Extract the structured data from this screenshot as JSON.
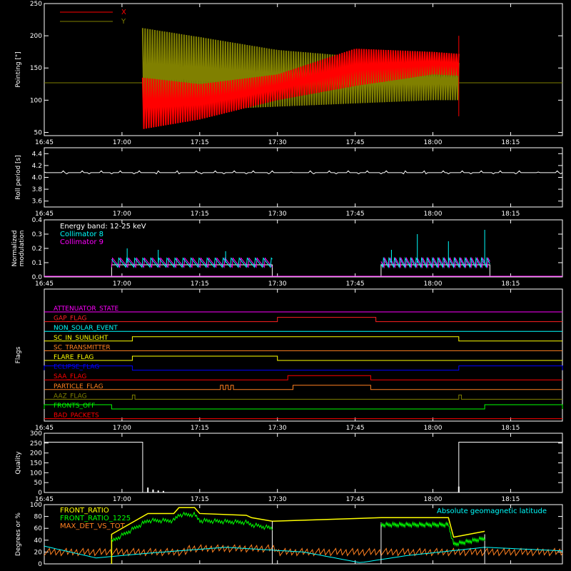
{
  "colors": {
    "background": "#000000",
    "axes": "#ffffff",
    "x": "#ff0000",
    "y": "#808000",
    "c8": "#00ffff",
    "c9": "#ff00ff",
    "front_ratio": "#ffff00",
    "front_ratio_1225": "#00ff00",
    "max_det": "#ff8020",
    "geomag": "#00ffff"
  },
  "time_ticks": [
    "16:45",
    "17:00",
    "17:15",
    "17:30",
    "17:45",
    "18:00",
    "18:15"
  ],
  "chart_data": [
    {
      "name": "pointing",
      "type": "line",
      "ylabel": "Pointing [\"]",
      "ylim": [
        45,
        250
      ],
      "yticks": [
        50,
        100,
        150,
        200,
        250
      ],
      "legend": [
        {
          "label": "X",
          "color": "#ff0000"
        },
        {
          "label": "Y",
          "color": "#808000"
        }
      ],
      "series": [
        {
          "name": "X",
          "baseline": 127,
          "x": [
            "17:04",
            "17:15",
            "17:30",
            "17:45",
            "18:00",
            "18:05"
          ],
          "ymin": [
            55,
            70,
            100,
            122,
            140,
            138
          ],
          "ymax": [
            135,
            125,
            140,
            180,
            175,
            172
          ]
        },
        {
          "name": "Y",
          "baseline": 127,
          "x": [
            "17:04",
            "17:15",
            "17:30",
            "17:45",
            "18:00",
            "18:05"
          ],
          "ymin": [
            80,
            85,
            90,
            95,
            100,
            100
          ],
          "ymax": [
            212,
            198,
            178,
            168,
            160,
            158
          ]
        }
      ]
    },
    {
      "name": "roll_period",
      "type": "line",
      "ylabel": "Roll period [s]",
      "ylim": [
        3.5,
        4.5
      ],
      "yticks": [
        3.6,
        3.8,
        4.0,
        4.2,
        4.4
      ],
      "series": [
        {
          "name": "roll",
          "x": [
            "16:45",
            "18:25"
          ],
          "y": [
            4.08,
            4.08
          ]
        }
      ]
    },
    {
      "name": "modulation",
      "type": "line",
      "ylabel": "Normalized\nmodulation",
      "ylim": [
        0,
        0.4
      ],
      "yticks": [
        0.0,
        0.1,
        0.2,
        0.3,
        0.4
      ],
      "legend": [
        {
          "label": "Energy band: 12-25 keV",
          "color": "#ffffff"
        },
        {
          "label": "Collimator 8",
          "color": "#00ffff"
        },
        {
          "label": "Collimator 9",
          "color": "#ff00ff"
        }
      ],
      "segments": [
        {
          "start": "16:58",
          "end": "17:29"
        },
        {
          "start": "17:50",
          "end": "18:11"
        }
      ],
      "level": 0.1,
      "peaks": [
        {
          "x": "17:01",
          "y": 0.2
        },
        {
          "x": "17:07",
          "y": 0.19
        },
        {
          "x": "17:20",
          "y": 0.18
        },
        {
          "x": "17:52",
          "y": 0.19
        },
        {
          "x": "17:57",
          "y": 0.3
        },
        {
          "x": "18:03",
          "y": 0.25
        },
        {
          "x": "18:10",
          "y": 0.33
        }
      ]
    },
    {
      "name": "flags",
      "type": "line",
      "ylabel": "Flags",
      "flags": [
        {
          "label": "ATTENUATOR_STATE",
          "color": "#ff00ff",
          "high": []
        },
        {
          "label": "GAP_FLAG",
          "color": "#ff2020",
          "high": [
            [
              "17:30",
              "17:49"
            ]
          ]
        },
        {
          "label": "NON_SOLAR_EVENT",
          "color": "#00ffff",
          "high": []
        },
        {
          "label": "SC_IN_SUNLIGHT",
          "color": "#ffff00",
          "high": [
            [
              "17:02",
              "18:05"
            ]
          ]
        },
        {
          "label": "SC_TRANSMITTER",
          "color": "#ff8020",
          "high": []
        },
        {
          "label": "FLARE_FLAG",
          "color": "#ffff00",
          "high": [
            [
              "17:02",
              "17:30"
            ]
          ]
        },
        {
          "label": "ECLIPSE_FLAG",
          "color": "#0000ff",
          "high": [
            [
              "16:45",
              "17:02"
            ],
            [
              "18:05",
              "18:25"
            ]
          ]
        },
        {
          "label": "SAA_FLAG",
          "color": "#ff0000",
          "high": [
            [
              "17:32",
              "17:48"
            ]
          ]
        },
        {
          "label": "PARTICLE_FLAG",
          "color": "#ff8020",
          "high": [
            [
              "17:19",
              "17:19.5"
            ],
            [
              "17:20",
              "17:20.5"
            ],
            [
              "17:21",
              "17:21.5"
            ],
            [
              "17:33",
              "17:48"
            ]
          ]
        },
        {
          "label": "AAZ_FLAG",
          "color": "#808000",
          "high": [
            [
              "17:02",
              "17:02.5"
            ],
            [
              "18:05",
              "18:05.5"
            ]
          ]
        },
        {
          "label": "FRONTS_OFF",
          "color": "#00ff00",
          "high": [
            [
              "16:45",
              "16:58"
            ],
            [
              "18:10",
              "18:25"
            ]
          ]
        },
        {
          "label": "BAD_PACKETS",
          "color": "#ff0000",
          "high": []
        }
      ]
    },
    {
      "name": "quality",
      "type": "line",
      "ylabel": "Quality",
      "ylim": [
        0,
        300
      ],
      "yticks": [
        0,
        50,
        100,
        150,
        200,
        250,
        300
      ],
      "series": [
        {
          "name": "quality",
          "x": [
            "16:45",
            "17:04",
            "17:04",
            "18:05",
            "18:05",
            "18:25"
          ],
          "y": [
            255,
            255,
            0,
            0,
            255,
            255
          ]
        }
      ]
    },
    {
      "name": "ratios",
      "type": "line",
      "ylabel": "Degrees or %",
      "ylim": [
        0,
        100
      ],
      "yticks": [
        0,
        20,
        40,
        60,
        80,
        100
      ],
      "legend": [
        {
          "label": "FRONT_RATIO",
          "color": "#ffff00"
        },
        {
          "label": "FRONT_RATIO_1225",
          "color": "#00ff00"
        },
        {
          "label": "MAX_DET_VS_TOT",
          "color": "#ff8020"
        }
      ],
      "geomag_label": "Absolute geomagnetic latitude",
      "front_ratio": [
        {
          "x": "16:58",
          "y": 50
        },
        {
          "x": "17:05",
          "y": 85
        },
        {
          "x": "17:10",
          "y": 85
        },
        {
          "x": "17:11",
          "y": 95
        },
        {
          "x": "17:14",
          "y": 95
        },
        {
          "x": "17:15",
          "y": 85
        },
        {
          "x": "17:24",
          "y": 82
        },
        {
          "x": "17:25",
          "y": 78
        },
        {
          "x": "17:29",
          "y": 72
        },
        {
          "x": "17:50",
          "y": 78
        },
        {
          "x": "18:03",
          "y": 78
        },
        {
          "x": "18:04",
          "y": 45
        },
        {
          "x": "18:10",
          "y": 55
        }
      ],
      "geomag": {
        "x": [
          "16:45",
          "16:55",
          "17:05",
          "17:20",
          "17:35",
          "17:46",
          "17:55",
          "18:10",
          "18:25"
        ],
        "y": [
          30,
          10,
          18,
          28,
          20,
          2,
          14,
          28,
          22
        ]
      }
    }
  ]
}
